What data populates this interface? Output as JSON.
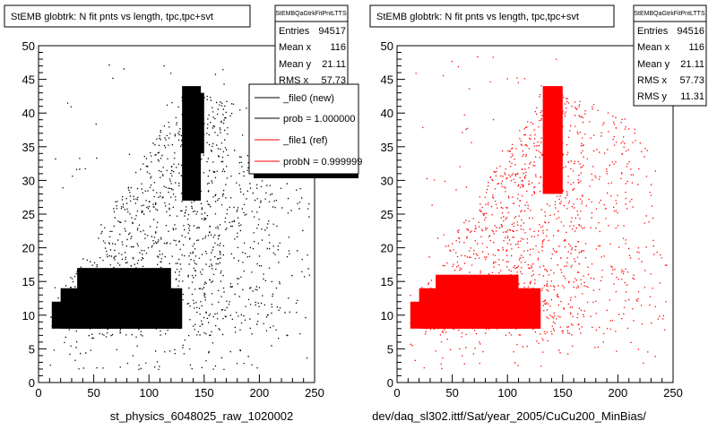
{
  "chart_data": [
    {
      "type": "scatter",
      "title": "StEMB globtrk: N fit pnts vs length, tpc,tpc+svt",
      "xlabel": "st_physics_6048025_raw_1020002",
      "xlim": [
        0,
        250
      ],
      "ylim": [
        0,
        50
      ],
      "x_ticks": [
        "0",
        "50",
        "100",
        "150",
        "200",
        "250"
      ],
      "y_ticks": [
        "0",
        "5",
        "10",
        "15",
        "20",
        "25",
        "30",
        "35",
        "40",
        "45",
        "50"
      ],
      "color": "#000000",
      "stats": {
        "name": "StEMBQaGtrkFitPntLTTS",
        "rows": [
          {
            "label": "Entries",
            "value": "94517"
          },
          {
            "label": "Mean x",
            "value": "116"
          },
          {
            "label": "Mean y",
            "value": "21.11"
          },
          {
            "label": "RMS x",
            "value": "57.73"
          }
        ]
      },
      "legend": [
        {
          "label": "_file0 (new)",
          "color": "#000000"
        },
        {
          "label": "prob = 1.000000",
          "color": "#000000"
        },
        {
          "label": "_file1 (ref)",
          "color": "#ff0000"
        },
        {
          "label": "probN = 0.999999",
          "color": "#ff0000"
        }
      ],
      "blocks": [
        {
          "x": [
            12,
            130
          ],
          "y": [
            8,
            12
          ]
        },
        {
          "x": [
            20,
            130
          ],
          "y": [
            8,
            14
          ]
        },
        {
          "x": [
            35,
            120
          ],
          "y": [
            8,
            17
          ]
        },
        {
          "x": [
            130,
            147
          ],
          "y": [
            27,
            44
          ]
        },
        {
          "x": [
            135,
            150
          ],
          "y": [
            34,
            43
          ]
        }
      ]
    },
    {
      "type": "scatter",
      "title": "StEMB globtrk: N fit pnts vs length, tpc,tpc+svt",
      "xlabel": "dev/daq_sl302.ittf/Sat/year_2005/CuCu200_MinBias/",
      "xlim": [
        0,
        250
      ],
      "ylim": [
        0,
        50
      ],
      "x_ticks": [
        "0",
        "50",
        "100",
        "150",
        "200",
        "250"
      ],
      "y_ticks": [
        "0",
        "5",
        "10",
        "15",
        "20",
        "25",
        "30",
        "35",
        "40",
        "45",
        "50"
      ],
      "color": "#ff0000",
      "stats": {
        "name": "StEMBQaGtrkFitPntLTTS",
        "rows": [
          {
            "label": "Entries",
            "value": "94516"
          },
          {
            "label": "Mean x",
            "value": "116"
          },
          {
            "label": "Mean y",
            "value": "21.11"
          },
          {
            "label": "RMS x",
            "value": "57.73"
          },
          {
            "label": "RMS y",
            "value": "11.31"
          }
        ]
      },
      "blocks": [
        {
          "x": [
            12,
            130
          ],
          "y": [
            8,
            12
          ]
        },
        {
          "x": [
            20,
            130
          ],
          "y": [
            8,
            14
          ]
        },
        {
          "x": [
            35,
            110
          ],
          "y": [
            8,
            16
          ]
        },
        {
          "x": [
            132,
            150
          ],
          "y": [
            28,
            44
          ]
        }
      ]
    }
  ]
}
